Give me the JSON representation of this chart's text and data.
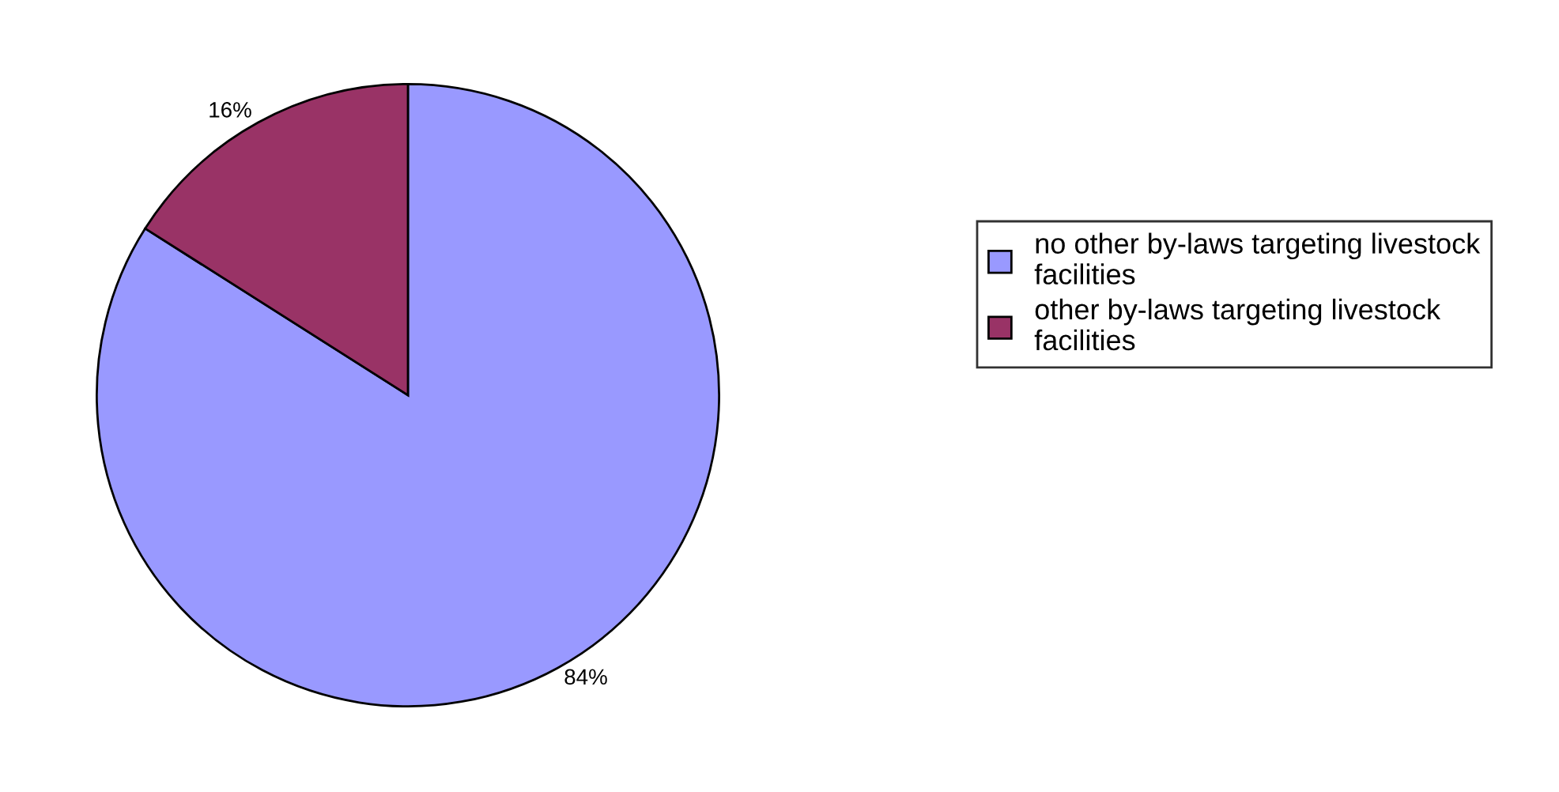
{
  "chart_data": {
    "type": "pie",
    "categories": [
      "no other by-laws targeting livestock\nfacilities",
      "other by-laws targeting livestock\nfacilities"
    ],
    "values": [
      84,
      16
    ],
    "colors": [
      "#9999ff",
      "#993366"
    ],
    "value_labels": [
      "84%",
      "16%"
    ],
    "legend": "right"
  }
}
